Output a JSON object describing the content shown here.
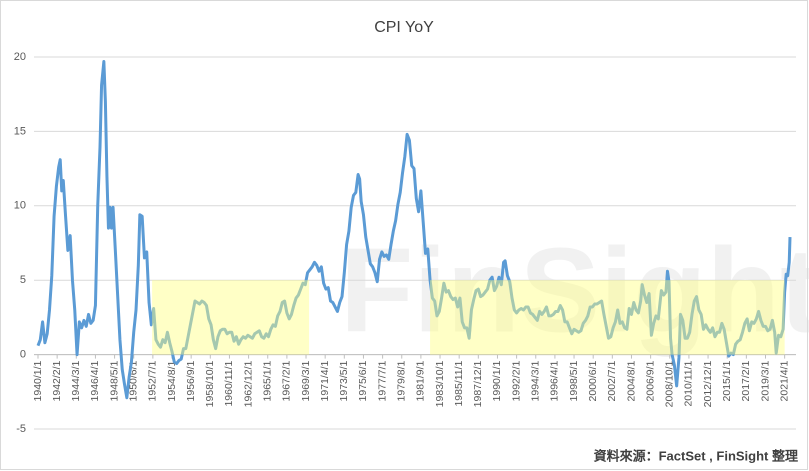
{
  "chart_data": {
    "type": "line",
    "title": "CPI YoY",
    "source": "資料來源：FactSet , FinSight 整理",
    "watermark": "FinSight",
    "color": "#5b9bd5",
    "grid": true,
    "grid_color": "#d9d9d9",
    "ylim": [
      -5,
      20
    ],
    "yticks": [
      -5,
      0,
      5,
      10,
      15,
      20
    ],
    "xlim": [
      "1940/1/1",
      "2021/11/1"
    ],
    "xticks": [
      "1940/1/1",
      "1942/2/1",
      "1944/3/1",
      "1946/4/1",
      "1948/5/1",
      "1950/6/1",
      "1952/7/1",
      "1954/8/1",
      "1956/9/1",
      "1958/10/1",
      "1960/11/1",
      "1962/12/1",
      "1965/1/1",
      "1967/2/1",
      "1969/3/1",
      "1971/4/1",
      "1973/5/1",
      "1975/6/1",
      "1977/7/1",
      "1979/8/1",
      "1981/9/1",
      "1983/10/1",
      "1985/11/1",
      "1987/12/1",
      "1990/1/1",
      "1992/2/1",
      "1994/3/1",
      "1996/4/1",
      "1998/5/1",
      "2000/6/1",
      "2002/7/1",
      "2004/8/1",
      "2006/9/1",
      "2008/10/1",
      "2010/11/1",
      "2012/12/1",
      "2015/1/1",
      "2017/2/1",
      "2019/3/1",
      "2021/4/1"
    ],
    "highlights": [
      {
        "from": "1952/6/1",
        "to": "1969/7/1",
        "ymin": 0,
        "ymax": 5,
        "color": "#ffff80"
      },
      {
        "from": "1982/9/1",
        "to": "2021/4/1",
        "ymin": 0,
        "ymax": 5,
        "color": "#ffff80"
      }
    ],
    "x": [
      "1940/1/1",
      "1940/4/1",
      "1940/7/1",
      "1940/10/1",
      "1941/1/1",
      "1941/4/1",
      "1941/7/1",
      "1941/10/1",
      "1942/1/1",
      "1942/4/1",
      "1942/6/1",
      "1942/8/1",
      "1942/10/1",
      "1943/1/1",
      "1943/4/1",
      "1943/7/1",
      "1943/10/1",
      "1944/1/1",
      "1944/4/1",
      "1944/7/1",
      "1944/10/1",
      "1945/1/1",
      "1945/4/1",
      "1945/7/1",
      "1945/10/1",
      "1946/1/1",
      "1946/4/1",
      "1946/7/1",
      "1946/10/1",
      "1946/12/1",
      "1947/3/1",
      "1947/5/1",
      "1947/7/1",
      "1947/9/1",
      "1947/11/1",
      "1948/1/1",
      "1948/3/1",
      "1948/6/1",
      "1948/9/1",
      "1948/12/1",
      "1949/3/1",
      "1949/6/1",
      "1949/9/1",
      "1949/12/1",
      "1950/3/1",
      "1950/6/1",
      "1950/9/1",
      "1950/12/1",
      "1951/2/1",
      "1951/5/1",
      "1951/8/1",
      "1951/11/1",
      "1952/2/1",
      "1952/5/1",
      "1952/8/1",
      "1952/11/1",
      "1953/2/1",
      "1953/5/1",
      "1953/8/1",
      "1953/11/1",
      "1954/2/1",
      "1954/5/1",
      "1954/8/1",
      "1954/11/1",
      "1955/2/1",
      "1955/5/1",
      "1955/8/1",
      "1955/11/1",
      "1956/2/1",
      "1956/5/1",
      "1956/8/1",
      "1956/11/1",
      "1957/2/1",
      "1957/5/1",
      "1957/8/1",
      "1957/11/1",
      "1958/2/1",
      "1958/5/1",
      "1958/8/1",
      "1958/11/1",
      "1959/2/1",
      "1959/5/1",
      "1959/8/1",
      "1959/11/1",
      "1960/2/1",
      "1960/5/1",
      "1960/8/1",
      "1960/11/1",
      "1961/2/1",
      "1961/5/1",
      "1961/8/1",
      "1961/11/1",
      "1962/2/1",
      "1962/5/1",
      "1962/8/1",
      "1962/11/1",
      "1963/2/1",
      "1963/5/1",
      "1963/8/1",
      "1963/11/1",
      "1964/2/1",
      "1964/5/1",
      "1964/8/1",
      "1964/11/1",
      "1965/2/1",
      "1965/5/1",
      "1965/8/1",
      "1965/11/1",
      "1966/2/1",
      "1966/5/1",
      "1966/8/1",
      "1966/11/1",
      "1967/2/1",
      "1967/5/1",
      "1967/8/1",
      "1967/11/1",
      "1968/2/1",
      "1968/5/1",
      "1968/8/1",
      "1968/11/1",
      "1969/2/1",
      "1969/5/1",
      "1969/8/1",
      "1969/11/1",
      "1970/2/1",
      "1970/5/1",
      "1970/8/1",
      "1970/11/1",
      "1971/2/1",
      "1971/5/1",
      "1971/8/1",
      "1971/11/1",
      "1972/2/1",
      "1972/5/1",
      "1972/8/1",
      "1972/11/1",
      "1973/2/1",
      "1973/5/1",
      "1973/8/1",
      "1973/11/1",
      "1974/2/1",
      "1974/5/1",
      "1974/8/1",
      "1974/11/1",
      "1975/1/1",
      "1975/3/1",
      "1975/6/1",
      "1975/9/1",
      "1975/12/1",
      "1976/3/1",
      "1976/6/1",
      "1976/9/1",
      "1976/12/1",
      "1977/3/1",
      "1977/6/1",
      "1977/9/1",
      "1977/12/1",
      "1978/3/1",
      "1978/6/1",
      "1978/9/1",
      "1978/12/1",
      "1979/3/1",
      "1979/6/1",
      "1979/9/1",
      "1979/12/1",
      "1980/3/1",
      "1980/6/1",
      "1980/9/1",
      "1980/12/1",
      "1981/3/1",
      "1981/6/1",
      "1981/9/1",
      "1981/12/1",
      "1982/3/1",
      "1982/6/1",
      "1982/9/1",
      "1982/12/1",
      "1983/3/1",
      "1983/6/1",
      "1983/9/1",
      "1983/12/1",
      "1984/3/1",
      "1984/6/1",
      "1984/9/1",
      "1984/12/1",
      "1985/3/1",
      "1985/6/1",
      "1985/9/1",
      "1985/12/1",
      "1986/3/1",
      "1986/6/1",
      "1986/9/1",
      "1986/12/1",
      "1987/3/1",
      "1987/6/1",
      "1987/9/1",
      "1987/12/1",
      "1988/3/1",
      "1988/6/1",
      "1988/9/1",
      "1988/12/1",
      "1989/3/1",
      "1989/6/1",
      "1989/9/1",
      "1989/12/1",
      "1990/3/1",
      "1990/6/1",
      "1990/9/1",
      "1990/11/1",
      "1991/2/1",
      "1991/5/1",
      "1991/8/1",
      "1991/11/1",
      "1992/2/1",
      "1992/5/1",
      "1992/8/1",
      "1992/11/1",
      "1993/2/1",
      "1993/5/1",
      "1993/8/1",
      "1993/11/1",
      "1994/2/1",
      "1994/5/1",
      "1994/8/1",
      "1994/11/1",
      "1995/2/1",
      "1995/5/1",
      "1995/8/1",
      "1995/11/1",
      "1996/2/1",
      "1996/5/1",
      "1996/8/1",
      "1996/11/1",
      "1997/2/1",
      "1997/5/1",
      "1997/8/1",
      "1997/11/1",
      "1998/2/1",
      "1998/5/1",
      "1998/8/1",
      "1998/11/1",
      "1999/2/1",
      "1999/5/1",
      "1999/8/1",
      "1999/11/1",
      "2000/2/1",
      "2000/5/1",
      "2000/8/1",
      "2000/11/1",
      "2001/2/1",
      "2001/5/1",
      "2001/8/1",
      "2001/11/1",
      "2002/2/1",
      "2002/5/1",
      "2002/8/1",
      "2002/11/1",
      "2003/2/1",
      "2003/5/1",
      "2003/8/1",
      "2003/11/1",
      "2004/2/1",
      "2004/5/1",
      "2004/8/1",
      "2004/11/1",
      "2005/2/1",
      "2005/5/1",
      "2005/8/1",
      "2005/10/1",
      "2006/1/1",
      "2006/4/1",
      "2006/7/1",
      "2006/10/1",
      "2007/1/1",
      "2007/4/1",
      "2007/7/1",
      "2007/11/1",
      "2008/2/1",
      "2008/5/1",
      "2008/7/1",
      "2008/9/1",
      "2008/11/1",
      "2009/1/1",
      "2009/4/1",
      "2009/7/1",
      "2009/10/1",
      "2009/12/1",
      "2010/3/1",
      "2010/6/1",
      "2010/9/1",
      "2010/12/1",
      "2011/3/1",
      "2011/6/1",
      "2011/9/1",
      "2011/12/1",
      "2012/3/1",
      "2012/6/1",
      "2012/9/1",
      "2012/12/1",
      "2013/3/1",
      "2013/6/1",
      "2013/9/1",
      "2013/12/1",
      "2014/3/1",
      "2014/6/1",
      "2014/9/1",
      "2014/12/1",
      "2015/3/1",
      "2015/6/1",
      "2015/9/1",
      "2015/12/1",
      "2016/3/1",
      "2016/6/1",
      "2016/9/1",
      "2016/12/1",
      "2017/3/1",
      "2017/6/1",
      "2017/9/1",
      "2017/12/1",
      "2018/3/1",
      "2018/6/1",
      "2018/9/1",
      "2018/12/1",
      "2019/3/1",
      "2019/6/1",
      "2019/9/1",
      "2019/12/1",
      "2020/3/1",
      "2020/5/1",
      "2020/8/1",
      "2020/11/1",
      "2021/2/1",
      "2021/4/1",
      "2021/6/1",
      "2021/8/1",
      "2021/10/1",
      "2021/11/1"
    ],
    "values": [
      0.6,
      1.0,
      2.2,
      0.8,
      1.4,
      3.0,
      5.3,
      9.3,
      11.3,
      12.6,
      13.1,
      11.0,
      11.7,
      9.3,
      7.0,
      8.0,
      5.0,
      3.0,
      0.0,
      2.2,
      1.8,
      2.3,
      1.9,
      2.7,
      2.1,
      2.3,
      3.3,
      10.0,
      14.0,
      18.1,
      19.7,
      17.0,
      12.0,
      8.5,
      9.9,
      8.5,
      9.9,
      7.0,
      4.0,
      1.0,
      -1.0,
      -2.0,
      -2.9,
      -1.5,
      -0.5,
      1.5,
      3.0,
      6.0,
      9.4,
      9.3,
      6.5,
      6.9,
      3.5,
      2.0,
      3.1,
      1.0,
      0.7,
      0.5,
      1.0,
      0.8,
      1.5,
      0.8,
      0.2,
      -0.5,
      -0.6,
      -0.4,
      -0.3,
      0.4,
      0.4,
      1.2,
      2.0,
      2.8,
      3.6,
      3.5,
      3.4,
      3.6,
      3.5,
      3.3,
      2.4,
      2.0,
      1.0,
      0.4,
      1.2,
      1.6,
      1.7,
      1.7,
      1.4,
      1.5,
      1.5,
      0.9,
      1.2,
      0.7,
      1.0,
      1.2,
      1.1,
      1.3,
      1.2,
      1.1,
      1.4,
      1.5,
      1.6,
      1.2,
      1.1,
      1.4,
      1.2,
      1.7,
      2.0,
      1.9,
      2.6,
      2.9,
      3.5,
      3.6,
      2.8,
      2.4,
      2.7,
      3.3,
      3.8,
      4.0,
      4.4,
      4.8,
      4.7,
      5.5,
      5.7,
      5.9,
      6.2,
      6.0,
      5.6,
      5.9,
      4.8,
      4.4,
      4.5,
      3.6,
      3.5,
      3.2,
      2.9,
      3.5,
      3.9,
      5.5,
      7.4,
      8.3,
      9.9,
      10.7,
      10.9,
      12.1,
      11.8,
      10.3,
      9.4,
      7.9,
      7.0,
      6.1,
      5.9,
      5.5,
      4.9,
      6.4,
      6.9,
      6.6,
      6.7,
      6.4,
      7.4,
      8.3,
      9.0,
      10.1,
      10.9,
      12.2,
      13.3,
      14.8,
      14.4,
      12.7,
      12.5,
      10.5,
      9.6,
      11.0,
      8.9,
      6.8,
      7.1,
      5.0,
      3.8,
      3.6,
      2.6,
      2.9,
      3.8,
      4.8,
      4.2,
      4.3,
      3.9,
      3.7,
      3.8,
      3.2,
      3.8,
      2.2,
      1.8,
      1.8,
      1.1,
      3.0,
      3.7,
      4.3,
      4.4,
      3.9,
      4.0,
      4.2,
      4.4,
      5.0,
      5.2,
      4.3,
      4.6,
      5.2,
      4.7,
      6.2,
      6.3,
      5.3,
      4.9,
      3.8,
      3.0,
      2.8,
      3.0,
      3.1,
      3.0,
      3.2,
      3.2,
      2.8,
      2.7,
      2.5,
      2.3,
      2.9,
      2.7,
      2.9,
      3.2,
      2.6,
      2.6,
      2.7,
      2.9,
      2.9,
      3.3,
      3.0,
      2.2,
      2.2,
      1.8,
      1.4,
      1.7,
      1.6,
      1.5,
      1.6,
      2.1,
      2.3,
      2.6,
      3.2,
      3.2,
      3.4,
      3.4,
      3.5,
      3.6,
      2.7,
      1.9,
      1.1,
      1.2,
      1.8,
      2.2,
      3.0,
      2.1,
      2.2,
      1.8,
      1.7,
      3.1,
      2.7,
      3.5,
      3.0,
      2.8,
      3.6,
      4.7,
      4.0,
      3.5,
      4.1,
      1.3,
      2.1,
      2.6,
      2.4,
      4.3,
      4.0,
      4.2,
      5.6,
      4.9,
      1.1,
      0.0,
      -0.7,
      -2.1,
      -0.2,
      2.7,
      2.3,
      1.1,
      1.1,
      1.5,
      2.7,
      3.6,
      3.9,
      3.0,
      2.7,
      1.7,
      2.0,
      1.7,
      1.5,
      1.8,
      1.2,
      1.5,
      1.5,
      2.1,
      1.7,
      0.8,
      -0.1,
      0.1,
      0.0,
      0.7,
      0.9,
      1.0,
      1.5,
      2.1,
      2.4,
      1.6,
      2.2,
      2.1,
      2.4,
      2.9,
      2.3,
      1.9,
      1.9,
      1.6,
      1.7,
      2.3,
      1.5,
      0.1,
      1.3,
      1.2,
      1.7,
      4.2,
      5.4,
      5.3,
      6.2,
      7.9
    ]
  }
}
